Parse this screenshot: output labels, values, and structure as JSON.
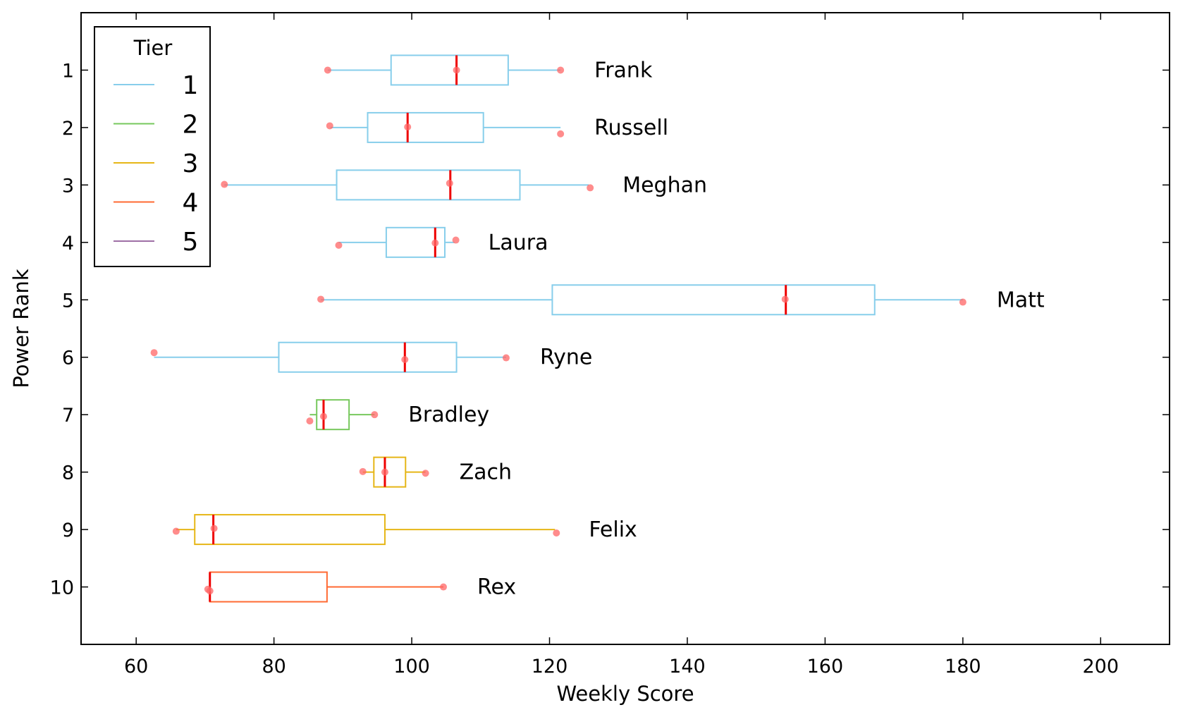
{
  "chart_data": {
    "type": "boxplot",
    "orientation": "horizontal",
    "xlabel": "Weekly Score",
    "ylabel": "Power Rank",
    "xlim": [
      52,
      210
    ],
    "ylim": [
      11,
      0
    ],
    "x_ticks": [
      60,
      80,
      100,
      120,
      140,
      160,
      180,
      200
    ],
    "y_ticks": [
      1,
      2,
      3,
      4,
      5,
      6,
      7,
      8,
      9,
      10
    ],
    "grid": false,
    "legend": {
      "title": "Tier",
      "position": "top-left",
      "entries": [
        {
          "label": "1",
          "color": "#87CEEB"
        },
        {
          "label": "2",
          "color": "#77C85D"
        },
        {
          "label": "3",
          "color": "#E6B617"
        },
        {
          "label": "4",
          "color": "#FF6A33"
        },
        {
          "label": "5",
          "color": "#9E6FA6"
        }
      ]
    },
    "median_color": "#EE0000",
    "point_color": "#FF6666",
    "boxes": [
      {
        "name": "Frank",
        "rank": 1,
        "tier": "1",
        "whisker_low": 87.8,
        "q1": 97.0,
        "median": 106.5,
        "q3": 114.0,
        "whisker_high": 121.6,
        "points": [
          {
            "x": 87.8,
            "y": 1.0
          },
          {
            "x": 106.5,
            "y": 1.0
          },
          {
            "x": 121.6,
            "y": 1.0
          }
        ]
      },
      {
        "name": "Russell",
        "rank": 2,
        "tier": "1",
        "whisker_low": 88.2,
        "q1": 93.6,
        "median": 99.4,
        "q3": 110.4,
        "whisker_high": 121.6,
        "points": [
          {
            "x": 88.1,
            "y": 1.97
          },
          {
            "x": 99.4,
            "y": 1.99
          },
          {
            "x": 121.6,
            "y": 2.11
          }
        ]
      },
      {
        "name": "Meghan",
        "rank": 3,
        "tier": "1",
        "whisker_low": 72.8,
        "q1": 89.1,
        "median": 105.6,
        "q3": 115.7,
        "whisker_high": 125.7,
        "points": [
          {
            "x": 72.8,
            "y": 2.99
          },
          {
            "x": 105.5,
            "y": 2.97
          },
          {
            "x": 125.9,
            "y": 3.05
          }
        ]
      },
      {
        "name": "Laura",
        "rank": 4,
        "tier": "1",
        "whisker_low": 89.4,
        "q1": 96.3,
        "median": 103.4,
        "q3": 104.8,
        "whisker_high": 106.2,
        "points": [
          {
            "x": 89.4,
            "y": 4.05
          },
          {
            "x": 103.4,
            "y": 4.01
          },
          {
            "x": 106.4,
            "y": 3.96
          }
        ]
      },
      {
        "name": "Matt",
        "rank": 5,
        "tier": "1",
        "whisker_low": 86.8,
        "q1": 120.4,
        "median": 154.3,
        "q3": 167.2,
        "whisker_high": 180.0,
        "points": [
          {
            "x": 86.8,
            "y": 4.99
          },
          {
            "x": 154.2,
            "y": 4.99
          },
          {
            "x": 180.0,
            "y": 5.04
          }
        ]
      },
      {
        "name": "Ryne",
        "rank": 6,
        "tier": "1",
        "whisker_low": 62.6,
        "q1": 80.7,
        "median": 99.0,
        "q3": 106.5,
        "whisker_high": 113.7,
        "points": [
          {
            "x": 62.6,
            "y": 5.92
          },
          {
            "x": 99.0,
            "y": 6.04
          },
          {
            "x": 113.7,
            "y": 6.01
          }
        ]
      },
      {
        "name": "Bradley",
        "rank": 7,
        "tier": "2",
        "whisker_low": 85.2,
        "q1": 86.2,
        "median": 87.2,
        "q3": 90.9,
        "whisker_high": 94.6,
        "points": [
          {
            "x": 85.2,
            "y": 7.11
          },
          {
            "x": 87.2,
            "y": 7.03
          },
          {
            "x": 94.6,
            "y": 7.0
          }
        ]
      },
      {
        "name": "Zach",
        "rank": 8,
        "tier": "3",
        "whisker_low": 92.9,
        "q1": 94.5,
        "median": 96.1,
        "q3": 99.1,
        "whisker_high": 102.0,
        "points": [
          {
            "x": 92.9,
            "y": 7.99
          },
          {
            "x": 96.1,
            "y": 8.0
          },
          {
            "x": 102.0,
            "y": 8.02
          }
        ]
      },
      {
        "name": "Felix",
        "rank": 9,
        "tier": "3",
        "whisker_low": 65.8,
        "q1": 68.5,
        "median": 71.2,
        "q3": 96.1,
        "whisker_high": 120.8,
        "points": [
          {
            "x": 65.8,
            "y": 9.03
          },
          {
            "x": 71.3,
            "y": 8.98
          },
          {
            "x": 121.0,
            "y": 9.06
          }
        ]
      },
      {
        "name": "Rex",
        "rank": 10,
        "tier": "4",
        "whisker_low": 70.6,
        "q1": 70.7,
        "median": 70.7,
        "q3": 87.7,
        "whisker_high": 104.6,
        "points": [
          {
            "x": 70.4,
            "y": 10.04
          },
          {
            "x": 70.7,
            "y": 10.07
          },
          {
            "x": 104.6,
            "y": 10.0
          }
        ]
      }
    ]
  }
}
